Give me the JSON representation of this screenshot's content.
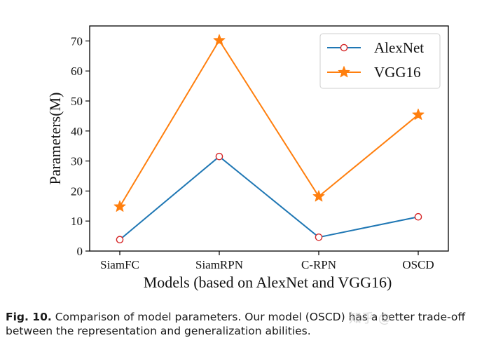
{
  "chart_data": {
    "type": "line",
    "categories": [
      "SiamFC",
      "SiamRPN",
      "C-RPN",
      "OSCD"
    ],
    "series": [
      {
        "name": "AlexNet",
        "values": [
          3.8,
          31.5,
          4.6,
          11.4
        ],
        "color": "#1f77b4",
        "marker": "circle"
      },
      {
        "name": "VGG16",
        "values": [
          14.8,
          70.2,
          18.2,
          45.4
        ],
        "color": "#ff7f0e",
        "marker": "star"
      }
    ],
    "xlabel": "Models (based on AlexNet and VGG16)",
    "ylabel": "Parameters(M)",
    "ylim": [
      0,
      75
    ],
    "yticks": [
      0,
      10,
      20,
      30,
      40,
      50,
      60,
      70
    ],
    "legend_position": "top-right",
    "marker_edge_color": "#d62728"
  },
  "caption": {
    "label": "Fig. 10.",
    "text": "Comparison of model parameters. Our model (OSCD) has a better trade-off between the representation and generalization abilities."
  },
  "watermark": "知乎 @"
}
